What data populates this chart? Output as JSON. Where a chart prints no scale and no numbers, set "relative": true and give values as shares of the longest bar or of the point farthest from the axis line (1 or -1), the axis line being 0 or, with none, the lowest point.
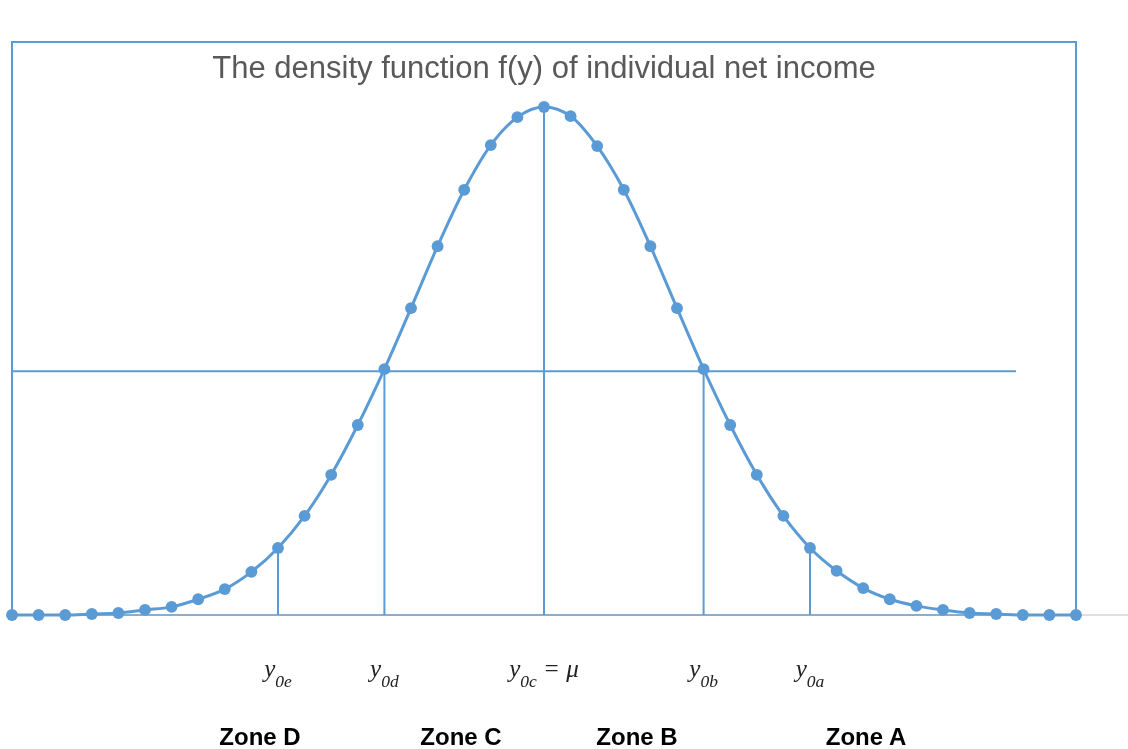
{
  "chart_data": {
    "type": "line",
    "title": "The density function f(y) of individual net income",
    "relative": true,
    "marker": "circle",
    "line_style": "solid",
    "grid": false,
    "categories": [
      null,
      null,
      null,
      null,
      null,
      null,
      null,
      null,
      null,
      null,
      "y$_{0e}$",
      null,
      null,
      null,
      "y$_{0d}$",
      null,
      null,
      null,
      null,
      null,
      "y$_{0c}$ = μ",
      null,
      null,
      null,
      null,
      null,
      "y$_{0b}$",
      null,
      null,
      null,
      "y$_{0a}$",
      null,
      null,
      null,
      null,
      null,
      null,
      null,
      null,
      null,
      null
    ],
    "series": [
      {
        "color": "#5b9bd5",
        "values": [
          0,
          0,
          0,
          0.002,
          0.004,
          0.01,
          0.016,
          0.031,
          0.051,
          0.085,
          0.132,
          0.195,
          0.276,
          0.374,
          0.484,
          0.604,
          0.726,
          0.837,
          0.925,
          0.98,
          1,
          0.982,
          0.923,
          0.837,
          0.726,
          0.604,
          0.484,
          0.374,
          0.276,
          0.195,
          0.132,
          0.087,
          0.053,
          0.031,
          0.018,
          0.01,
          0.004,
          0.002,
          0,
          0,
          0
        ]
      }
    ],
    "ref_lines": [
      {
        "axis": "y",
        "value": 0.48,
        "color": "#5b9bd5"
      },
      {
        "axis": "x",
        "value": "y$_{0e}$",
        "color": "#5b9bd5"
      },
      {
        "axis": "x",
        "value": "y$_{0d}$",
        "color": "#5b9bd5"
      },
      {
        "axis": "x",
        "value": "y$_{0c}$ = μ",
        "color": "#5b9bd5"
      },
      {
        "axis": "x",
        "value": "y$_{0b}$",
        "color": "#5b9bd5"
      },
      {
        "axis": "x",
        "value": "y$_{0a}$",
        "color": "#5b9bd5"
      }
    ],
    "annotations": [
      "Zone D",
      "Zone C",
      "Zone B",
      "Zone A"
    ]
  }
}
